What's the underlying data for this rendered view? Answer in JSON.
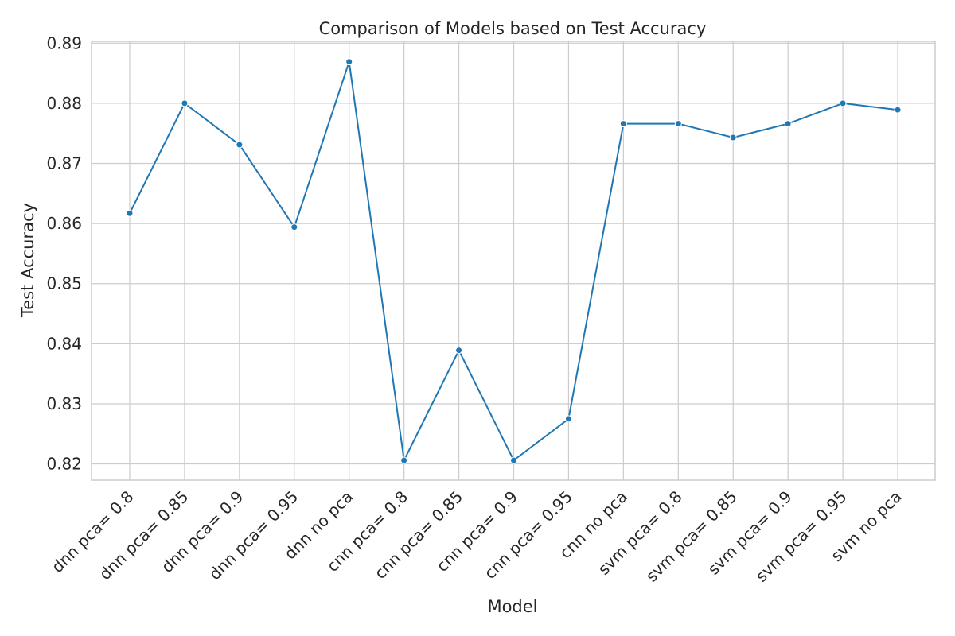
{
  "chart_data": {
    "type": "line",
    "title": "Comparison of Models based on Test Accuracy",
    "xlabel": "Model",
    "ylabel": "Test Accuracy",
    "categories": [
      "dnn pca= 0.8",
      "dnn pca= 0.85",
      "dnn pca= 0.9",
      "dnn pca= 0.95",
      "dnn no pca",
      "cnn pca= 0.8",
      "cnn pca= 0.85",
      "cnn pca= 0.9",
      "cnn pca= 0.95",
      "cnn no pca",
      "svm pca= 0.8",
      "svm pca= 0.85",
      "svm pca= 0.9",
      "svm pca= 0.95",
      "svm no pca"
    ],
    "values": [
      0.8617,
      0.88,
      0.8731,
      0.8594,
      0.8869,
      0.8206,
      0.8389,
      0.8206,
      0.8275,
      0.8766,
      0.8766,
      0.8743,
      0.8766,
      0.88,
      0.8789
    ],
    "ylim": [
      0.8173,
      0.8903
    ],
    "yticks": [
      "0.82",
      "0.83",
      "0.84",
      "0.85",
      "0.86",
      "0.87",
      "0.88",
      "0.89"
    ],
    "ytick_values": [
      0.82,
      0.83,
      0.84,
      0.85,
      0.86,
      0.87,
      0.88,
      0.89
    ],
    "grid": true,
    "line_color": "#1f77b4",
    "grid_color": "#cccccc"
  }
}
